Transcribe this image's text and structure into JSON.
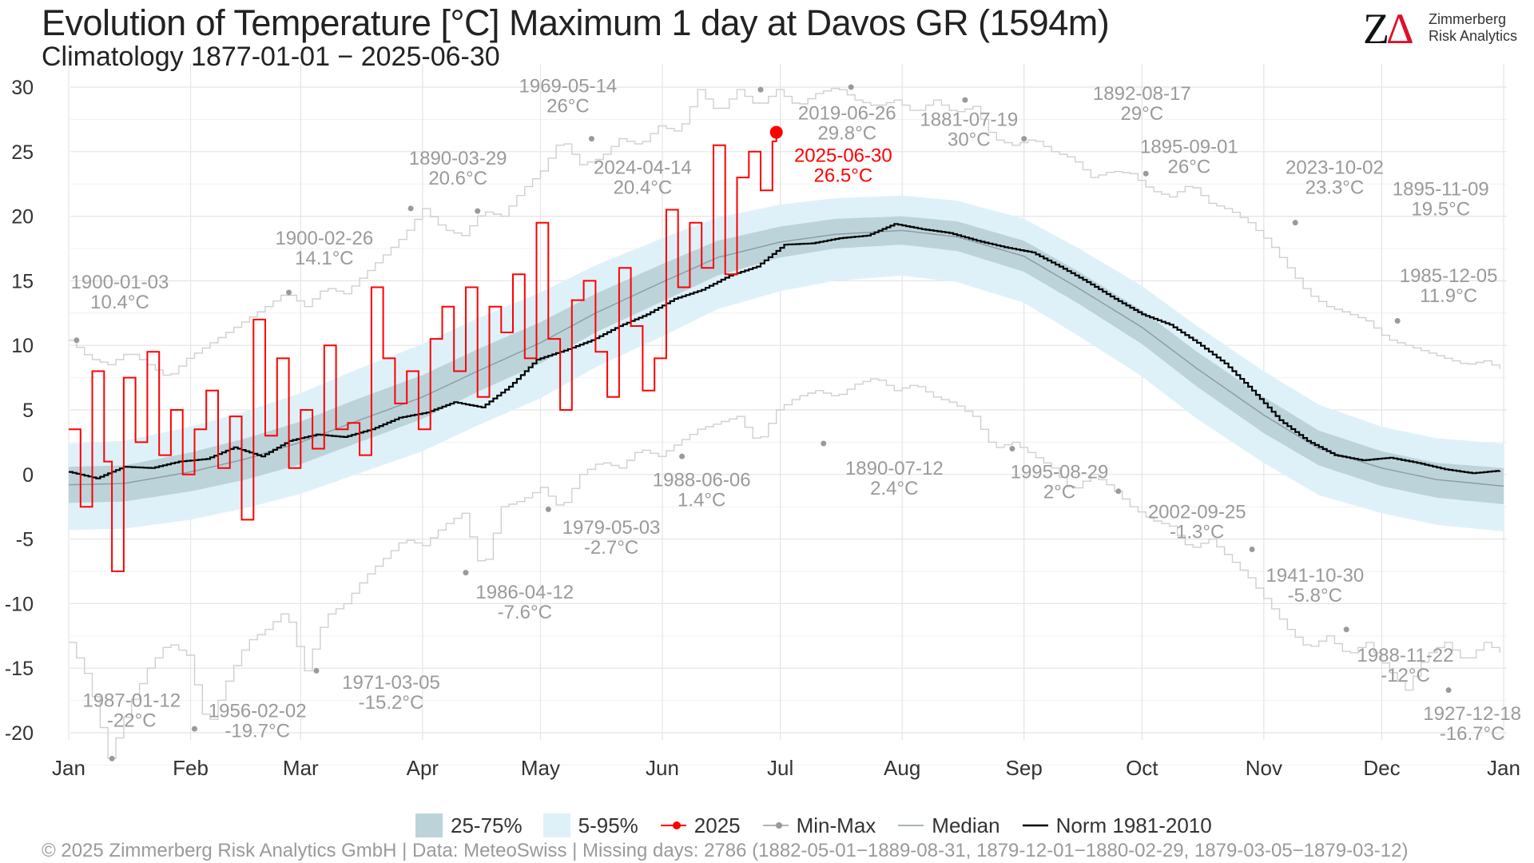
{
  "header": {
    "title": "Evolution of Temperature [°C] Maximum 1 day at Davos  GR (1594m)",
    "subtitle": "Climatology 1877-01-01 − 2025-06-30"
  },
  "logo": {
    "mark_z": "Z",
    "mark_delta": "Δ",
    "line1": "Zimmerberg",
    "line2": "Risk Analytics"
  },
  "legend": {
    "q25_75": "25-75%",
    "q05_95": "5-95%",
    "current": "2025",
    "minmax": "Min-Max",
    "median": "Median",
    "norm": "Norm 1981-2010"
  },
  "footer": {
    "text": "©  2025 Zimmerberg Risk Analytics GmbH | Data: MeteoSwiss | Missing days: 2786 (1882-05-01−1889-08-31, 1879-12-01−1880-02-29, 1879-03-05−1879-03-12)"
  },
  "colors": {
    "band_25_75": "#bcd3da",
    "band_5_95": "#dff1f8",
    "current": "#ff0000",
    "record": "#999999",
    "median": "#8c9aa3",
    "norm": "#000000"
  },
  "chart_data": {
    "type": "line",
    "title": "Evolution of Temperature [°C] Maximum 1 day at Davos  GR (1594m)",
    "subtitle": "Climatology 1877-01-01 − 2025-06-30",
    "x_unit": "day of year",
    "xlim": [
      1,
      366
    ],
    "ylim": [
      -23,
      31
    ],
    "yticks": [
      -20,
      -15,
      -10,
      -5,
      0,
      5,
      10,
      15,
      20,
      25,
      30
    ],
    "month_ticks": [
      {
        "label": "Jan",
        "doy": 1
      },
      {
        "label": "Feb",
        "doy": 32
      },
      {
        "label": "Mar",
        "doy": 60
      },
      {
        "label": "Apr",
        "doy": 91
      },
      {
        "label": "May",
        "doy": 121
      },
      {
        "label": "Jun",
        "doy": 152
      },
      {
        "label": "Jul",
        "doy": 182
      },
      {
        "label": "Aug",
        "doy": 213
      },
      {
        "label": "Sep",
        "doy": 244
      },
      {
        "label": "Oct",
        "doy": 274
      },
      {
        "label": "Nov",
        "doy": 305
      },
      {
        "label": "Dec",
        "doy": 335
      },
      {
        "label": "Jan",
        "doy": 366
      }
    ],
    "grid": true,
    "legend_position": "bottom",
    "climatology": {
      "doy": [
        1,
        15,
        32,
        46,
        60,
        74,
        91,
        105,
        121,
        135,
        152,
        166,
        182,
        196,
        213,
        227,
        244,
        258,
        274,
        288,
        305,
        319,
        335,
        349,
        366
      ],
      "p05": [
        -4.3,
        -4.2,
        -3.5,
        -2.6,
        -1.5,
        0.0,
        1.8,
        3.8,
        5.9,
        8.3,
        10.7,
        12.8,
        14.2,
        15.0,
        15.4,
        14.9,
        13.3,
        10.7,
        7.6,
        4.3,
        0.9,
        -1.6,
        -3.0,
        -3.9,
        -4.4
      ],
      "p25": [
        -2.2,
        -2.1,
        -1.3,
        -0.4,
        0.8,
        2.4,
        4.3,
        6.4,
        8.6,
        11.0,
        13.4,
        15.4,
        16.8,
        17.5,
        17.8,
        17.3,
        15.7,
        13.2,
        10.1,
        6.8,
        3.2,
        0.7,
        -0.9,
        -1.8,
        -2.3
      ],
      "median": [
        -0.8,
        -0.7,
        0.2,
        1.2,
        2.5,
        4.1,
        6.0,
        8.0,
        10.2,
        12.5,
        14.9,
        16.8,
        18.0,
        18.6,
        18.9,
        18.4,
        16.9,
        14.4,
        11.4,
        8.2,
        4.6,
        2.0,
        0.5,
        -0.4,
        -0.9
      ],
      "p75": [
        0.6,
        0.7,
        1.7,
        2.8,
        4.1,
        5.8,
        7.7,
        9.7,
        11.8,
        14.0,
        16.3,
        18.1,
        19.2,
        19.8,
        20.0,
        19.6,
        18.1,
        15.7,
        12.7,
        9.5,
        6.0,
        3.4,
        1.8,
        0.9,
        0.5
      ],
      "p95": [
        2.4,
        2.6,
        3.7,
        4.9,
        6.3,
        8.1,
        10.1,
        12.1,
        14.1,
        16.2,
        18.3,
        19.9,
        20.9,
        21.4,
        21.6,
        21.2,
        19.8,
        17.5,
        14.6,
        11.5,
        8.0,
        5.4,
        3.7,
        2.8,
        2.4
      ]
    },
    "norm_1981_2010": {
      "doy": [
        1,
        8,
        15,
        22,
        29,
        36,
        43,
        50,
        57,
        64,
        71,
        78,
        85,
        92,
        99,
        106,
        113,
        120,
        127,
        134,
        141,
        148,
        155,
        162,
        169,
        176,
        183,
        190,
        197,
        204,
        211,
        218,
        225,
        232,
        239,
        246,
        253,
        260,
        267,
        274,
        281,
        288,
        295,
        302,
        309,
        316,
        323,
        330,
        337,
        344,
        351,
        358,
        365
      ],
      "values": [
        0.2,
        -0.3,
        0.6,
        0.5,
        1.0,
        1.2,
        2.1,
        1.4,
        2.6,
        3.1,
        2.9,
        3.5,
        4.4,
        4.8,
        5.6,
        5.2,
        6.8,
        8.9,
        9.6,
        10.4,
        11.5,
        12.4,
        13.6,
        14.3,
        15.4,
        16.1,
        17.8,
        17.9,
        18.3,
        18.5,
        19.4,
        19.0,
        18.7,
        18.1,
        17.6,
        17.2,
        16.1,
        14.9,
        13.6,
        12.4,
        11.6,
        10.2,
        8.6,
        6.5,
        4.2,
        2.6,
        1.5,
        1.1,
        1.3,
        0.9,
        0.4,
        0.1,
        0.3
      ]
    },
    "current_2025": {
      "name": "2025",
      "doy": [
        1,
        4,
        7,
        10,
        12,
        15,
        18,
        21,
        24,
        27,
        30,
        33,
        36,
        39,
        42,
        45,
        48,
        51,
        54,
        57,
        60,
        63,
        66,
        69,
        72,
        75,
        78,
        81,
        84,
        87,
        90,
        93,
        96,
        99,
        102,
        105,
        108,
        111,
        114,
        117,
        120,
        123,
        126,
        129,
        132,
        135,
        138,
        141,
        144,
        147,
        150,
        153,
        156,
        159,
        162,
        165,
        168,
        171,
        174,
        177,
        180,
        181
      ],
      "values": [
        3.5,
        -2.5,
        8.0,
        1.0,
        -7.5,
        7.5,
        2.5,
        9.5,
        1.5,
        5.0,
        0.0,
        3.5,
        6.5,
        0.5,
        4.5,
        -3.5,
        12.0,
        3.0,
        9.0,
        0.5,
        5.0,
        2.0,
        10.0,
        3.5,
        4.0,
        1.5,
        14.5,
        9.0,
        5.5,
        8.0,
        3.5,
        10.5,
        13.0,
        8.0,
        14.5,
        6.0,
        13.0,
        11.0,
        15.5,
        9.0,
        19.5,
        10.5,
        5.0,
        13.5,
        15.0,
        9.5,
        6.0,
        16.0,
        11.5,
        6.5,
        9.0,
        20.5,
        14.5,
        19.5,
        16.0,
        25.5,
        15.5,
        23.0,
        25.0,
        22.0,
        25.8,
        26.5
      ]
    },
    "record_max": {
      "doy": [
        1,
        6,
        11,
        16,
        21,
        26,
        31,
        36,
        41,
        46,
        51,
        56,
        61,
        66,
        71,
        76,
        81,
        86,
        91,
        96,
        101,
        106,
        111,
        116,
        121,
        126,
        131,
        136,
        141,
        146,
        151,
        156,
        161,
        166,
        171,
        176,
        181,
        186,
        191,
        196,
        201,
        206,
        211,
        216,
        221,
        226,
        231,
        236,
        241,
        246,
        251,
        256,
        261,
        266,
        271,
        276,
        281,
        286,
        291,
        296,
        301,
        306,
        311,
        316,
        321,
        326,
        331,
        336,
        341,
        346,
        351,
        356,
        361,
        366
      ],
      "values": [
        10.4,
        9.0,
        8.5,
        9.5,
        8.5,
        7.5,
        9.0,
        10.0,
        11.0,
        12.0,
        13.0,
        14.1,
        13.0,
        14.5,
        14.0,
        15.5,
        17.0,
        18.5,
        20.6,
        19.0,
        18.5,
        20.4,
        20.0,
        22.0,
        23.5,
        26.0,
        24.0,
        24.5,
        26.0,
        25.5,
        27.0,
        26.5,
        29.8,
        28.0,
        29.8,
        28.5,
        29.8,
        28.5,
        29.5,
        30.0,
        29.0,
        28.5,
        29.0,
        28.0,
        29.0,
        28.0,
        28.5,
        26.0,
        25.5,
        26.0,
        25.0,
        24.5,
        23.0,
        23.5,
        23.3,
        22.0,
        21.5,
        22.5,
        21.0,
        20.5,
        19.5,
        18.0,
        16.0,
        14.0,
        13.0,
        12.5,
        11.9,
        10.5,
        10.0,
        9.5,
        9.0,
        8.5,
        8.8,
        8.0
      ]
    },
    "record_min": {
      "doy": [
        1,
        6,
        11,
        16,
        21,
        26,
        31,
        36,
        41,
        46,
        51,
        56,
        61,
        66,
        71,
        76,
        81,
        86,
        91,
        96,
        101,
        106,
        111,
        116,
        121,
        126,
        131,
        136,
        141,
        146,
        151,
        156,
        161,
        166,
        171,
        176,
        181,
        186,
        191,
        196,
        201,
        206,
        211,
        216,
        221,
        226,
        231,
        236,
        241,
        246,
        251,
        256,
        261,
        266,
        271,
        276,
        281,
        286,
        291,
        296,
        301,
        306,
        311,
        316,
        321,
        326,
        331,
        336,
        341,
        346,
        351,
        356,
        361,
        366
      ],
      "values": [
        -13.0,
        -16.0,
        -22.0,
        -18.0,
        -15.0,
        -13.0,
        -14.0,
        -19.7,
        -16.0,
        -13.0,
        -12.0,
        -10.5,
        -15.2,
        -11.0,
        -10.0,
        -8.0,
        -6.5,
        -5.0,
        -5.5,
        -4.0,
        -3.0,
        -7.6,
        -2.5,
        -2.0,
        -1.0,
        -2.7,
        0.0,
        1.0,
        0.5,
        2.0,
        1.4,
        2.5,
        3.5,
        4.0,
        4.5,
        2.4,
        5.0,
        6.0,
        6.5,
        6.0,
        7.0,
        7.5,
        6.5,
        7.0,
        6.0,
        5.5,
        4.5,
        2.0,
        2.5,
        1.5,
        0.5,
        -1.3,
        0.0,
        -1.0,
        -2.5,
        -3.5,
        -4.0,
        -5.8,
        -5.0,
        -6.5,
        -8.0,
        -10.0,
        -12.0,
        -13.5,
        -12.5,
        -14.0,
        -13.0,
        -15.0,
        -16.7,
        -14.0,
        -13.0,
        -14.5,
        -13.0,
        -14.0
      ]
    },
    "annotations": [
      {
        "label": "1900-01-03",
        "value": "10.4°C",
        "doy": 3,
        "y": 10.4,
        "kind": "max",
        "tx": 14,
        "ty": 14.4
      },
      {
        "label": "1900-02-26",
        "value": "14.1°C",
        "doy": 57,
        "y": 14.1,
        "kind": "max",
        "tx": 66,
        "ty": 17.8
      },
      {
        "label": "1890-03-29",
        "value": "20.6°C",
        "doy": 88,
        "y": 20.6,
        "kind": "max",
        "tx": 100,
        "ty": 24.0
      },
      {
        "label": "2024-04-14",
        "value": "20.4°C",
        "doy": 105,
        "y": 20.4,
        "kind": "max",
        "tx": 147,
        "ty": 23.3
      },
      {
        "label": "1969-05-14",
        "value": "26°C",
        "doy": 134,
        "y": 26.0,
        "kind": "max",
        "tx": 128,
        "ty": 29.6
      },
      {
        "label": "2019-06-26",
        "value": "29.8°C",
        "doy": 177,
        "y": 29.8,
        "kind": "max",
        "tx": 199,
        "ty": 27.5
      },
      {
        "label": "1881-07-19",
        "value": "30°C",
        "doy": 200,
        "y": 30.0,
        "kind": "max",
        "tx": 230,
        "ty": 27.0
      },
      {
        "label": "1892-08-17",
        "value": "29°C",
        "doy": 229,
        "y": 29.0,
        "kind": "max",
        "tx": 274,
        "ty": 29.0
      },
      {
        "label": "1895-09-01",
        "value": "26°C",
        "doy": 244,
        "y": 26.0,
        "kind": "max",
        "tx": 286,
        "ty": 24.9
      },
      {
        "label": "2023-10-02",
        "value": "23.3°C",
        "doy": 275,
        "y": 23.3,
        "kind": "max",
        "tx": 323,
        "ty": 23.3
      },
      {
        "label": "1895-11-09",
        "value": "19.5°C",
        "doy": 313,
        "y": 19.5,
        "kind": "max",
        "tx": 350,
        "ty": 21.6
      },
      {
        "label": "1985-12-05",
        "value": "11.9°C",
        "doy": 339,
        "y": 11.9,
        "kind": "max",
        "tx": 352,
        "ty": 14.9
      },
      {
        "label": "1987-01-12",
        "value": "-22°C",
        "doy": 12,
        "y": -22.0,
        "kind": "min",
        "tx": 17,
        "ty": -18.0
      },
      {
        "label": "1956-02-02",
        "value": "-19.7°C",
        "doy": 33,
        "y": -19.7,
        "kind": "min",
        "tx": 49,
        "ty": -18.8
      },
      {
        "label": "1971-03-05",
        "value": "-15.2°C",
        "doy": 64,
        "y": -15.2,
        "kind": "min",
        "tx": 83,
        "ty": -16.6
      },
      {
        "label": "1986-04-12",
        "value": "-7.6°C",
        "doy": 102,
        "y": -7.6,
        "kind": "min",
        "tx": 117,
        "ty": -9.6
      },
      {
        "label": "1979-05-03",
        "value": "-2.7°C",
        "doy": 123,
        "y": -2.7,
        "kind": "min",
        "tx": 139,
        "ty": -4.6
      },
      {
        "label": "1988-06-06",
        "value": "1.4°C",
        "doy": 157,
        "y": 1.4,
        "kind": "min",
        "tx": 162,
        "ty": -0.9
      },
      {
        "label": "1890-07-12",
        "value": "2.4°C",
        "doy": 193,
        "y": 2.4,
        "kind": "min",
        "tx": 211,
        "ty": 0.0
      },
      {
        "label": "1995-08-29",
        "value": "2°C",
        "doy": 241,
        "y": 2.0,
        "kind": "min",
        "tx": 253,
        "ty": -0.3
      },
      {
        "label": "2002-09-25",
        "value": "-1.3°C",
        "doy": 268,
        "y": -1.3,
        "kind": "min",
        "tx": 288,
        "ty": -3.4
      },
      {
        "label": "1941-10-30",
        "value": "-5.8°C",
        "doy": 302,
        "y": -5.8,
        "kind": "min",
        "tx": 318,
        "ty": -8.3
      },
      {
        "label": "1988-11-22",
        "value": "-12°C",
        "doy": 326,
        "y": -12.0,
        "kind": "min",
        "tx": 341,
        "ty": -14.5
      },
      {
        "label": "1927-12-18",
        "value": "-16.7°C",
        "doy": 352,
        "y": -16.7,
        "kind": "min",
        "tx": 358,
        "ty": -19.0
      },
      {
        "label": "2025-06-30",
        "value": "26.5°C",
        "doy": 181,
        "y": 26.5,
        "kind": "current",
        "tx": 198,
        "ty": 24.2
      }
    ]
  }
}
